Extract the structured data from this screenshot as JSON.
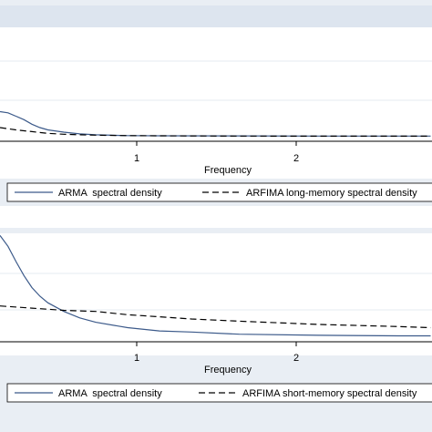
{
  "chart_data": [
    {
      "type": "line",
      "xlabel": "Frequency",
      "ylabel": "",
      "xlim": [
        0.0,
        2.7
      ],
      "ylim": [
        0.0,
        1.0
      ],
      "x_ticks": [
        1,
        2
      ],
      "x_tick_labels": [
        "1",
        "2"
      ],
      "grid": true,
      "legend_placement": "bottom",
      "series": [
        {
          "name": "ARMA  spectral density",
          "style": "solid",
          "color": "#3c5a8a",
          "x": [
            0.0,
            0.05,
            0.1,
            0.15,
            0.2,
            0.25,
            0.3,
            0.4,
            0.5,
            0.6,
            0.8,
            1.0,
            1.5,
            2.0,
            2.5,
            2.7
          ],
          "y": [
            0.26,
            0.25,
            0.22,
            0.19,
            0.15,
            0.12,
            0.1,
            0.08,
            0.065,
            0.057,
            0.05,
            0.048,
            0.047,
            0.046,
            0.046,
            0.046
          ]
        },
        {
          "name": "ARFIMA long-memory spectral density",
          "style": "dashed",
          "color": "#000000",
          "x": [
            0.0,
            0.1,
            0.2,
            0.3,
            0.4,
            0.5,
            0.6,
            0.8,
            1.0,
            1.5,
            2.0,
            2.5,
            2.7
          ],
          "y": [
            0.12,
            0.1,
            0.085,
            0.07,
            0.062,
            0.057,
            0.054,
            0.05,
            0.048,
            0.046,
            0.045,
            0.045,
            0.045
          ]
        }
      ]
    },
    {
      "type": "line",
      "xlabel": "Frequency",
      "ylabel": "",
      "xlim": [
        0.0,
        2.7
      ],
      "ylim": [
        0.0,
        1.0
      ],
      "x_ticks": [
        1,
        2
      ],
      "x_tick_labels": [
        "1",
        "2"
      ],
      "grid": true,
      "legend_placement": "bottom",
      "series": [
        {
          "name": "ARMA  spectral density",
          "style": "solid",
          "color": "#3c5a8a",
          "x": [
            0.0,
            0.05,
            0.1,
            0.15,
            0.2,
            0.25,
            0.3,
            0.4,
            0.5,
            0.6,
            0.8,
            1.0,
            1.2,
            1.5,
            2.0,
            2.5,
            2.7
          ],
          "y": [
            0.98,
            0.88,
            0.74,
            0.61,
            0.5,
            0.42,
            0.36,
            0.28,
            0.22,
            0.18,
            0.13,
            0.1,
            0.09,
            0.07,
            0.06,
            0.055,
            0.055
          ]
        },
        {
          "name": "ARFIMA short-memory spectral density",
          "style": "dashed",
          "color": "#000000",
          "x": [
            0.0,
            0.2,
            0.4,
            0.6,
            0.8,
            1.0,
            1.2,
            1.5,
            2.0,
            2.5,
            2.7
          ],
          "y": [
            0.33,
            0.31,
            0.29,
            0.28,
            0.25,
            0.23,
            0.21,
            0.19,
            0.16,
            0.14,
            0.13
          ]
        }
      ]
    }
  ]
}
